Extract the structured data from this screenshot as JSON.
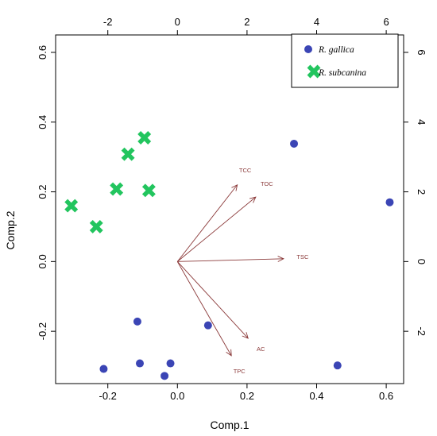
{
  "chart_data": {
    "type": "scatter",
    "subtype": "biplot",
    "xlabel": "Comp.1",
    "ylabel": "Comp.2",
    "xlim": [
      -0.35,
      0.65
    ],
    "ylim": [
      -0.35,
      0.65
    ],
    "x_ticks": [
      "-0.2",
      "0.0",
      "0.2",
      "0.4",
      "0.6"
    ],
    "x_tick_values": [
      -0.2,
      0.0,
      0.2,
      0.4,
      0.6
    ],
    "y_ticks": [
      "-0.2",
      "0.0",
      "0.2",
      "0.4",
      "0.6"
    ],
    "y_tick_values": [
      -0.2,
      0.0,
      0.2,
      0.4,
      0.6
    ],
    "top_ticks": [
      "-2",
      "0",
      "2",
      "4",
      "6"
    ],
    "top_tick_values": [
      -2,
      0,
      2,
      4,
      6
    ],
    "right_ticks": [
      "-2",
      "0",
      "2",
      "4",
      "6"
    ],
    "right_tick_values": [
      -2,
      0,
      2,
      4,
      6
    ],
    "legend_position": "top-right",
    "series": [
      {
        "name": "R. gallica",
        "marker": "circle",
        "color": "#3b45b5",
        "points": [
          {
            "x": 0.335,
            "y": 0.338
          },
          {
            "x": 0.61,
            "y": 0.17
          },
          {
            "x": 0.088,
            "y": -0.183
          },
          {
            "x": -0.115,
            "y": -0.172
          },
          {
            "x": -0.108,
            "y": -0.292
          },
          {
            "x": -0.02,
            "y": -0.292
          },
          {
            "x": -0.037,
            "y": -0.328
          },
          {
            "x": -0.212,
            "y": -0.308
          },
          {
            "x": 0.46,
            "y": -0.298
          }
        ]
      },
      {
        "name": "R. subcanina",
        "marker": "cross",
        "color": "#22c55e",
        "points": [
          {
            "x": -0.095,
            "y": 0.355
          },
          {
            "x": -0.142,
            "y": 0.308
          },
          {
            "x": -0.175,
            "y": 0.208
          },
          {
            "x": -0.082,
            "y": 0.204
          },
          {
            "x": -0.305,
            "y": 0.16
          },
          {
            "x": -0.233,
            "y": 0.1
          }
        ]
      }
    ],
    "loadings": [
      {
        "name": "TCC",
        "x": 1.72,
        "y": 2.2
      },
      {
        "name": "TOC",
        "x": 2.25,
        "y": 1.85
      },
      {
        "name": "TSC",
        "x": 3.05,
        "y": 0.08
      },
      {
        "name": "AC",
        "x": 2.03,
        "y": -2.2
      },
      {
        "name": "TPC",
        "x": 1.55,
        "y": -2.7
      }
    ],
    "loading_color": "#8b3a3a"
  }
}
